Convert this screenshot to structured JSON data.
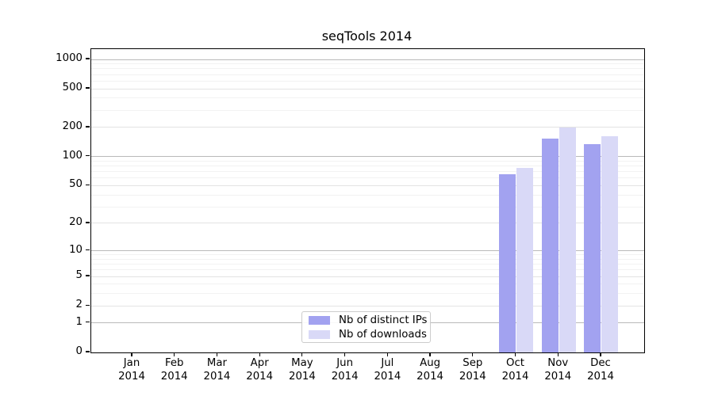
{
  "chart_data": {
    "type": "bar",
    "title": "seqTools 2014",
    "categories": [
      "Jan",
      "Feb",
      "Mar",
      "Apr",
      "May",
      "Jun",
      "Jul",
      "Aug",
      "Sep",
      "Oct",
      "Nov",
      "Dec"
    ],
    "category_year": "2014",
    "series": [
      {
        "name": "Nb of distinct IPs",
        "color": "#a2a2f0",
        "values": [
          null,
          null,
          null,
          null,
          null,
          null,
          null,
          null,
          null,
          66,
          155,
          135
        ]
      },
      {
        "name": "Nb of downloads",
        "color": "#d9d9f7",
        "values": [
          null,
          null,
          null,
          null,
          null,
          null,
          null,
          null,
          null,
          77,
          200,
          164
        ]
      }
    ],
    "y_ticks": [
      0,
      1,
      2,
      5,
      10,
      20,
      50,
      100,
      200,
      500,
      1000
    ],
    "y_minor_ticks": [
      3,
      4,
      6,
      7,
      8,
      9,
      30,
      40,
      60,
      70,
      80,
      90,
      300,
      400,
      600,
      700,
      800,
      900
    ],
    "y_scale": "log10(1+x)",
    "ylim": [
      0,
      1000
    ],
    "grid": "horizontal",
    "legend_position": "lower center",
    "colors": {
      "axis": "#000000",
      "grid_decade": "#b9b9b9",
      "grid_labeled": "#e3e3e3",
      "grid_minor": "#f2f2f2",
      "background": "#ffffff"
    }
  }
}
